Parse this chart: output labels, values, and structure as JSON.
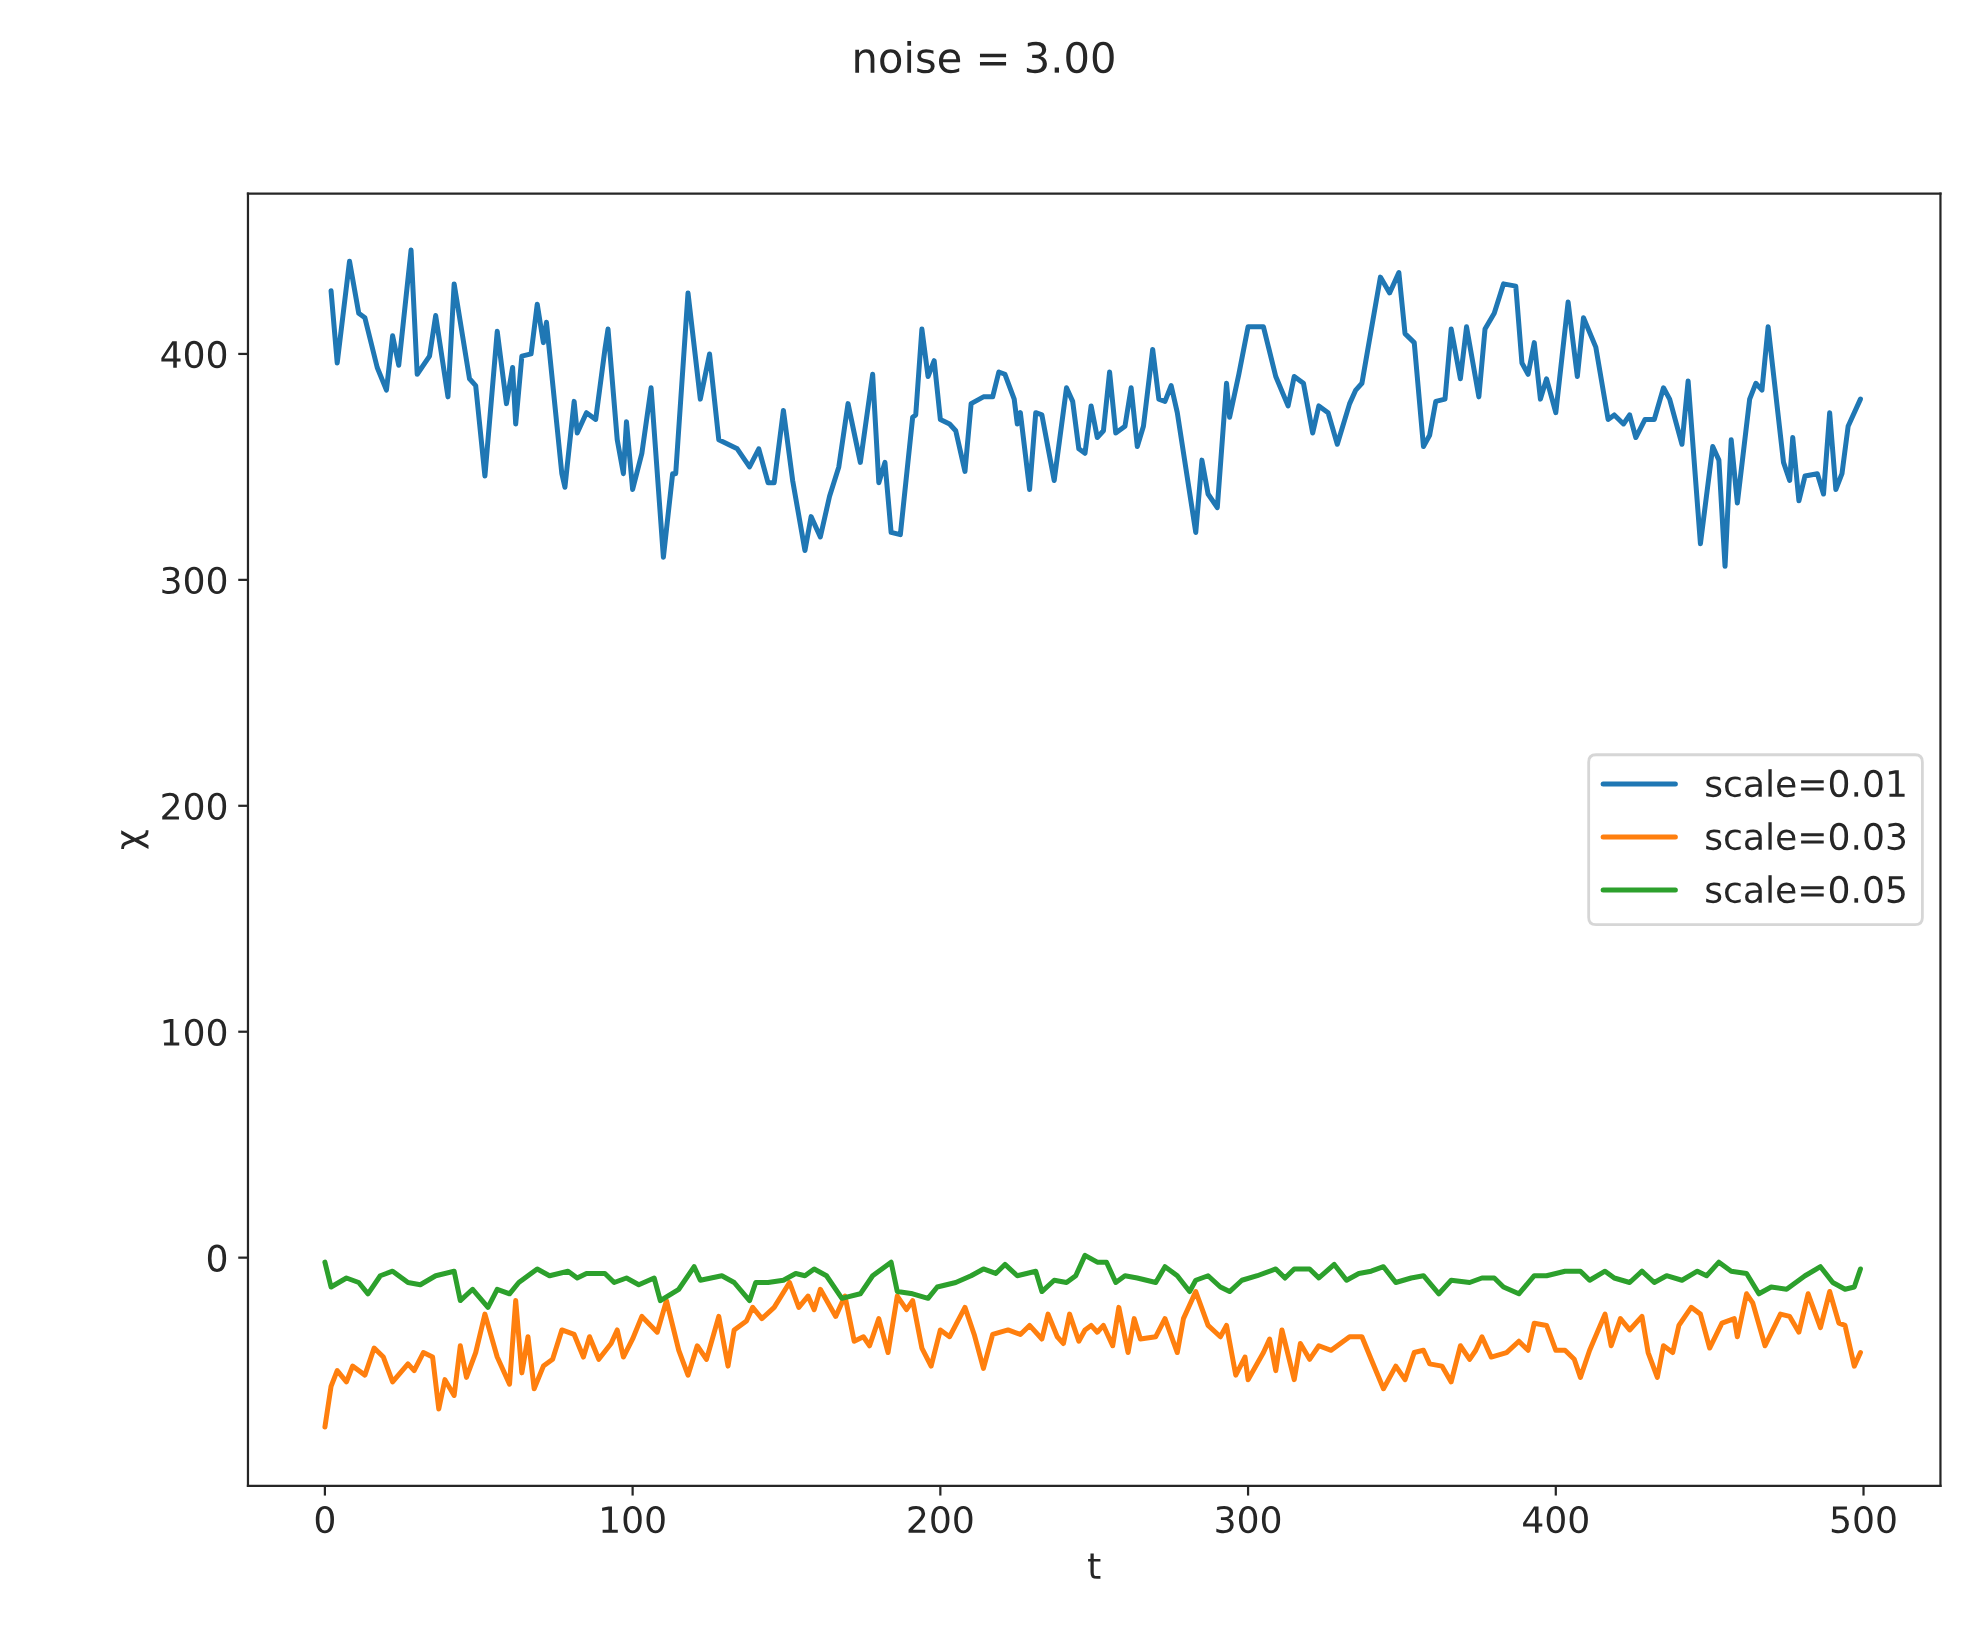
{
  "chart_data": {
    "type": "line",
    "title": "noise = 3.00",
    "xlabel": "t",
    "ylabel": "χ",
    "xlim": [
      -25,
      525
    ],
    "xticks": [
      0,
      100,
      200,
      300,
      400,
      500
    ],
    "ylim": [
      -101,
      471
    ],
    "yticks": [
      0,
      100,
      200,
      300,
      400
    ],
    "grid": false,
    "legend": "right",
    "line_style": "solid",
    "marker": "none",
    "series": [
      {
        "name": "scale=0.01",
        "color": "#1f77b4",
        "x": [
          2,
          4,
          8,
          11,
          13,
          17,
          20,
          22,
          24,
          28,
          30,
          34,
          36,
          40,
          42,
          47,
          49,
          52,
          56,
          59,
          61,
          62,
          64,
          67,
          69,
          71,
          72,
          77,
          78,
          81,
          82,
          85,
          88,
          91,
          92,
          95,
          97,
          98,
          100,
          103,
          106,
          110,
          113,
          114,
          118,
          122,
          125,
          128,
          131,
          134,
          138,
          141,
          144,
          146,
          149,
          152,
          156,
          158,
          161,
          164,
          167,
          170,
          174,
          178,
          180,
          182,
          184,
          187,
          191,
          192,
          194,
          196,
          198,
          200,
          203,
          205,
          208,
          210,
          214,
          217,
          219,
          221,
          224,
          225,
          226,
          229,
          231,
          233,
          237,
          241,
          243,
          245,
          247,
          249,
          251,
          253,
          255,
          257,
          260,
          262,
          264,
          266,
          269,
          271,
          273,
          275,
          277,
          283,
          285,
          287,
          290,
          293,
          294,
          297,
          300,
          305,
          309,
          313,
          315,
          318,
          321,
          323,
          326,
          329,
          333,
          335,
          337,
          343,
          346,
          349,
          351,
          354,
          357,
          359,
          361,
          364,
          366,
          369,
          371,
          375,
          377,
          380,
          383,
          387,
          389,
          391,
          393,
          395,
          397,
          400,
          404,
          407,
          409,
          413,
          417,
          419,
          422,
          424,
          426,
          429,
          432,
          435,
          437,
          441,
          443,
          447,
          451,
          453,
          455,
          457,
          459,
          463,
          465,
          467,
          469,
          474,
          476,
          477,
          479,
          481,
          485,
          487,
          489,
          491,
          493,
          495,
          499
        ],
        "values": [
          428,
          396,
          441,
          418,
          416,
          394,
          384,
          408,
          395,
          446,
          391,
          399,
          417,
          381,
          431,
          389,
          386,
          346,
          410,
          378,
          394,
          369,
          399,
          400,
          422,
          405,
          414,
          347,
          341,
          379,
          365,
          374,
          371,
          402,
          411,
          362,
          347,
          370,
          340,
          356,
          385,
          310,
          347,
          347,
          427,
          380,
          400,
          362,
          360,
          358,
          350,
          358,
          343,
          343,
          375,
          344,
          313,
          328,
          319,
          337,
          350,
          378,
          352,
          391,
          343,
          352,
          321,
          320,
          372,
          373,
          411,
          390,
          397,
          371,
          369,
          366,
          348,
          378,
          381,
          381,
          392,
          391,
          380,
          369,
          374,
          340,
          374,
          373,
          344,
          385,
          379,
          358,
          356,
          377,
          363,
          366,
          392,
          365,
          368,
          385,
          359,
          368,
          402,
          380,
          379,
          386,
          374,
          321,
          353,
          338,
          332,
          387,
          372,
          391,
          412,
          412,
          390,
          377,
          390,
          387,
          365,
          377,
          374,
          360,
          378,
          384,
          387,
          434,
          427,
          436,
          409,
          405,
          359,
          364,
          379,
          380,
          411,
          389,
          412,
          381,
          411,
          418,
          431,
          430,
          396,
          391,
          405,
          380,
          389,
          374,
          423,
          390,
          416,
          403,
          371,
          373,
          369,
          373,
          363,
          371,
          371,
          385,
          380,
          360,
          388,
          316,
          359,
          353,
          306,
          362,
          334,
          380,
          387,
          384,
          412,
          352,
          344,
          363,
          335,
          346,
          347,
          338,
          374,
          340,
          347,
          368,
          380
        ]
      },
      {
        "name": "scale=0.03",
        "color": "#ff7f0e",
        "x": [
          0,
          2,
          4,
          7,
          9,
          13,
          16,
          19,
          22,
          27,
          29,
          32,
          35,
          37,
          39,
          42,
          44,
          46,
          49,
          52,
          56,
          60,
          62,
          64,
          66,
          68,
          71,
          74,
          77,
          81,
          84,
          86,
          89,
          93,
          95,
          97,
          100,
          103,
          108,
          111,
          115,
          118,
          121,
          124,
          128,
          131,
          133,
          137,
          139,
          142,
          146,
          151,
          154,
          157,
          159,
          161,
          166,
          169,
          172,
          175,
          177,
          180,
          183,
          186,
          189,
          191,
          194,
          197,
          200,
          203,
          208,
          211,
          214,
          217,
          222,
          226,
          229,
          233,
          235,
          238,
          240,
          242,
          245,
          247,
          249,
          251,
          253,
          256,
          258,
          261,
          263,
          265,
          270,
          273,
          277,
          279,
          283,
          287,
          291,
          293,
          296,
          299,
          300,
          305,
          307,
          309,
          311,
          315,
          317,
          320,
          323,
          327,
          333,
          337,
          340,
          344,
          348,
          351,
          354,
          357,
          359,
          363,
          366,
          369,
          372,
          374,
          376,
          379,
          384,
          388,
          391,
          393,
          397,
          400,
          403,
          406,
          408,
          411,
          416,
          418,
          421,
          424,
          428,
          430,
          433,
          435,
          438,
          440,
          444,
          447,
          450,
          454,
          458,
          459,
          462,
          464,
          468,
          473,
          476,
          479,
          482,
          486,
          489,
          492,
          494,
          497,
          499
        ],
        "values": [
          -75,
          -57,
          -50,
          -55,
          -48,
          -52,
          -40,
          -44,
          -55,
          -47,
          -50,
          -42,
          -44,
          -67,
          -54,
          -61,
          -39,
          -53,
          -42,
          -25,
          -44,
          -56,
          -19,
          -51,
          -35,
          -58,
          -48,
          -45,
          -32,
          -34,
          -44,
          -35,
          -45,
          -38,
          -32,
          -44,
          -36,
          -26,
          -33,
          -19,
          -41,
          -52,
          -39,
          -45,
          -26,
          -48,
          -32,
          -28,
          -22,
          -27,
          -22,
          -11,
          -22,
          -17,
          -23,
          -14,
          -26,
          -17,
          -37,
          -35,
          -39,
          -27,
          -42,
          -17,
          -23,
          -19,
          -40,
          -48,
          -32,
          -35,
          -22,
          -34,
          -49,
          -34,
          -32,
          -34,
          -30,
          -36,
          -25,
          -35,
          -38,
          -25,
          -37,
          -32,
          -30,
          -33,
          -30,
          -39,
          -22,
          -42,
          -27,
          -36,
          -35,
          -27,
          -42,
          -27,
          -15,
          -30,
          -35,
          -30,
          -52,
          -44,
          -54,
          -42,
          -36,
          -50,
          -32,
          -54,
          -38,
          -45,
          -39,
          -41,
          -35,
          -35,
          -45,
          -58,
          -48,
          -54,
          -42,
          -41,
          -47,
          -48,
          -55,
          -39,
          -45,
          -41,
          -35,
          -44,
          -42,
          -37,
          -41,
          -29,
          -30,
          -41,
          -41,
          -45,
          -53,
          -41,
          -25,
          -39,
          -27,
          -32,
          -26,
          -42,
          -53,
          -39,
          -42,
          -30,
          -22,
          -25,
          -40,
          -29,
          -27,
          -35,
          -16,
          -20,
          -39,
          -25,
          -26,
          -33,
          -16,
          -31,
          -15,
          -29,
          -30,
          -48,
          -42
        ]
      },
      {
        "name": "scale=0.05",
        "color": "#2ca02c",
        "x": [
          0,
          2,
          7,
          11,
          14,
          18,
          22,
          27,
          31,
          36,
          42,
          44,
          48,
          53,
          56,
          60,
          63,
          69,
          73,
          79,
          82,
          85,
          91,
          94,
          98,
          102,
          107,
          109,
          115,
          120,
          122,
          129,
          133,
          138,
          140,
          144,
          149,
          153,
          156,
          159,
          163,
          168,
          174,
          178,
          181,
          184,
          186,
          191,
          196,
          199,
          205,
          210,
          214,
          218,
          221,
          225,
          231,
          233,
          237,
          241,
          244,
          247,
          251,
          254,
          257,
          260,
          264,
          270,
          273,
          277,
          281,
          283,
          287,
          291,
          294,
          298,
          303,
          309,
          312,
          315,
          320,
          323,
          328,
          332,
          336,
          340,
          344,
          348,
          353,
          357,
          362,
          366,
          372,
          376,
          380,
          383,
          388,
          393,
          397,
          403,
          408,
          411,
          416,
          419,
          424,
          428,
          432,
          436,
          441,
          446,
          449,
          453,
          457,
          462,
          466,
          470,
          475,
          481,
          486,
          490,
          494,
          497,
          499
        ],
        "values": [
          -2,
          -13,
          -9,
          -11,
          -16,
          -8,
          -6,
          -11,
          -12,
          -8,
          -6,
          -19,
          -14,
          -22,
          -14,
          -16,
          -11,
          -5,
          -8,
          -6,
          -9,
          -7,
          -7,
          -11,
          -9,
          -12,
          -9,
          -19,
          -14,
          -4,
          -10,
          -8,
          -11,
          -19,
          -11,
          -11,
          -10,
          -7,
          -8,
          -5,
          -8,
          -18,
          -16,
          -8,
          -5,
          -2,
          -15,
          -16,
          -18,
          -13,
          -11,
          -8,
          -5,
          -7,
          -3,
          -8,
          -6,
          -15,
          -10,
          -11,
          -8,
          1,
          -2,
          -2,
          -11,
          -8,
          -9,
          -11,
          -4,
          -8,
          -15,
          -10,
          -8,
          -13,
          -15,
          -10,
          -8,
          -5,
          -9,
          -5,
          -5,
          -9,
          -3,
          -10,
          -7,
          -6,
          -4,
          -11,
          -9,
          -8,
          -16,
          -10,
          -11,
          -9,
          -9,
          -13,
          -16,
          -8,
          -8,
          -6,
          -6,
          -10,
          -6,
          -9,
          -11,
          -6,
          -11,
          -8,
          -10,
          -6,
          -8,
          -2,
          -6,
          -7,
          -16,
          -13,
          -14,
          -8,
          -4,
          -11,
          -14,
          -13,
          -5
        ]
      }
    ]
  }
}
